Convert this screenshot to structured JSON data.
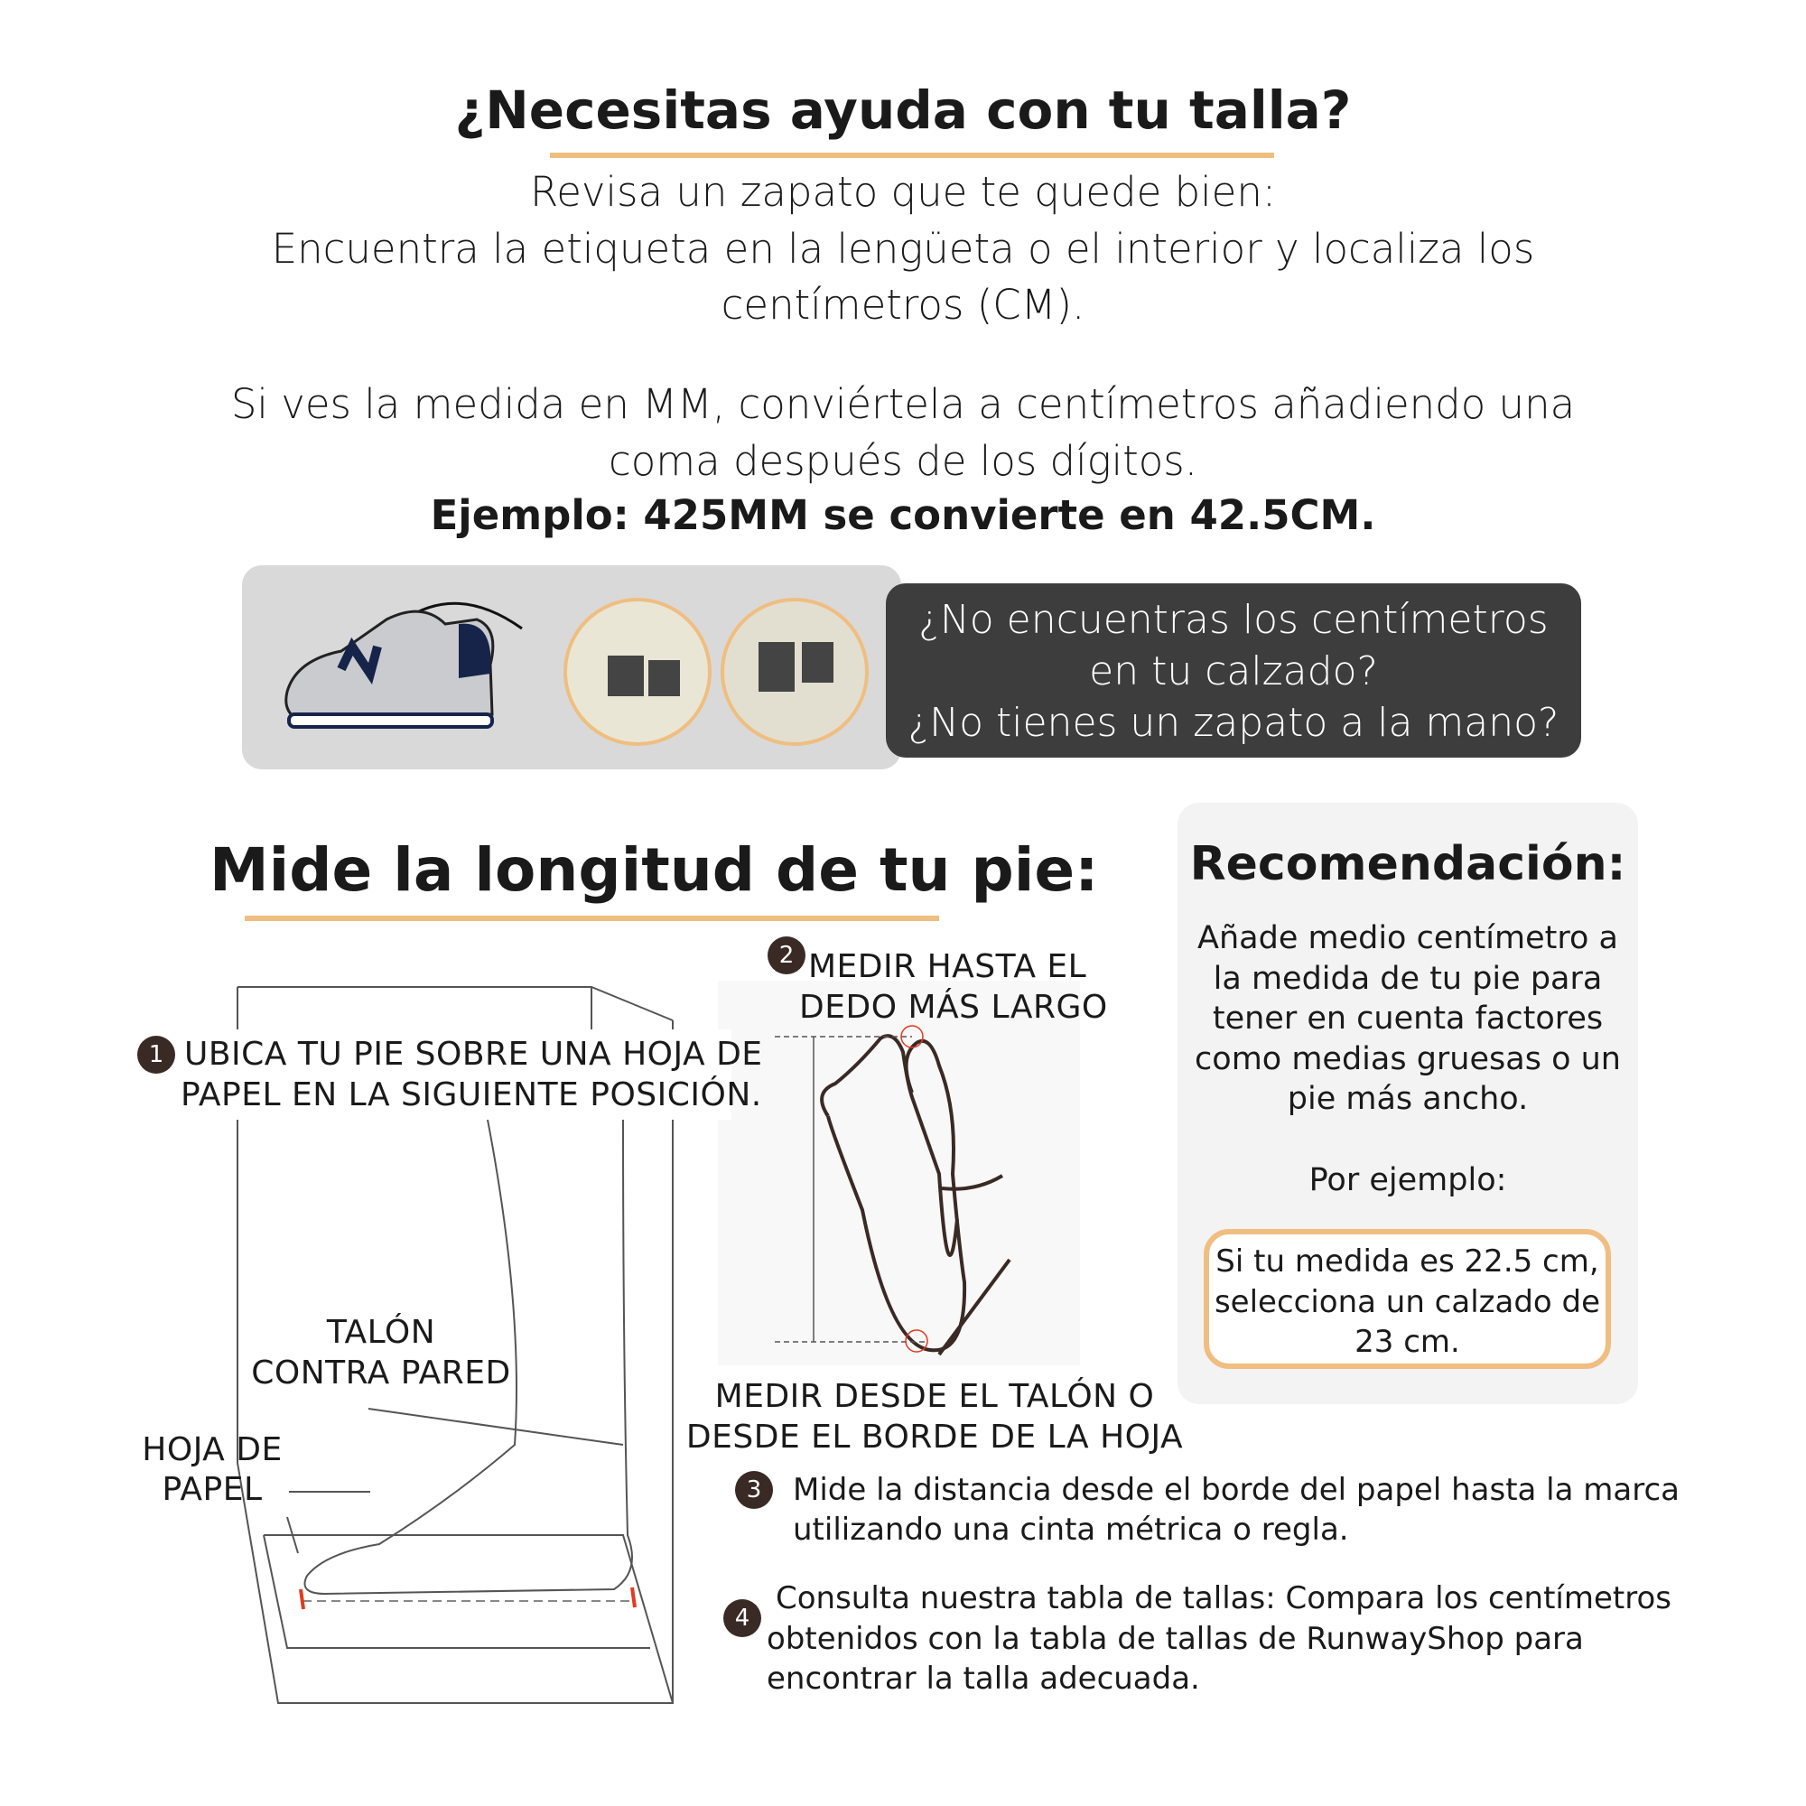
{
  "header": {
    "title": "¿Necesitas ayuda con tu talla?",
    "lines": [
      "Revisa un zapato que te quede bien:",
      "Encuentra la etiqueta en la lengüeta o el interior y localiza los",
      "centímetros (CM).",
      "Si ves la medida en MM, conviértela a centímetros añadiendo una",
      "coma después de los dígitos."
    ],
    "example": "Ejemplo: 425MM se convierte en 42.5CM."
  },
  "label_banner": {
    "lines": [
      "¿No encuentras los centímetros",
      "en tu calzado?",
      "¿No tienes un zapato a la mano?"
    ]
  },
  "measure": {
    "title": "Mide la longitud de tu pie:",
    "step1": {
      "number": "1",
      "lines": [
        "UBICA TU PIE SOBRE UNA HOJA DE",
        "PAPEL EN LA SIGUIENTE POSICIÓN."
      ]
    },
    "heel_label": [
      "TALÓN",
      "CONTRA PARED"
    ],
    "paper_label": [
      "HOJA DE",
      "PAPEL"
    ],
    "step2": {
      "number": "2",
      "lines": [
        "MEDIR HASTA EL",
        "DEDO MÁS LARGO"
      ]
    },
    "from_heel": [
      "MEDIR DESDE EL TALÓN O",
      "DESDE EL BORDE DE LA HOJA"
    ],
    "step3": {
      "number": "3",
      "lines": [
        "Mide la distancia desde el borde del papel hasta la marca",
        "utilizando una cinta métrica o regla."
      ]
    },
    "step4": {
      "number": "4",
      "lines": [
        "Consulta nuestra tabla de tallas: Compara los centímetros",
        "obtenidos con la tabla de tallas de RunwayShop para",
        "encontrar la talla adecuada."
      ]
    }
  },
  "recommendation": {
    "title": "Recomendación:",
    "lines": [
      "Añade medio centímetro a",
      "la medida de tu pie para",
      "tener en cuenta factores",
      "como medias gruesas o un",
      "pie más ancho."
    ],
    "example_label": "Por ejemplo:",
    "example_lines": [
      "Si tu medida es 22.5 cm,",
      "selecciona un calzado de",
      "23 cm."
    ]
  },
  "colors": {
    "accent": "#efbe80",
    "dark": "#3d3d3d",
    "marker": "#e53a1e",
    "line": "#3a2a25"
  }
}
